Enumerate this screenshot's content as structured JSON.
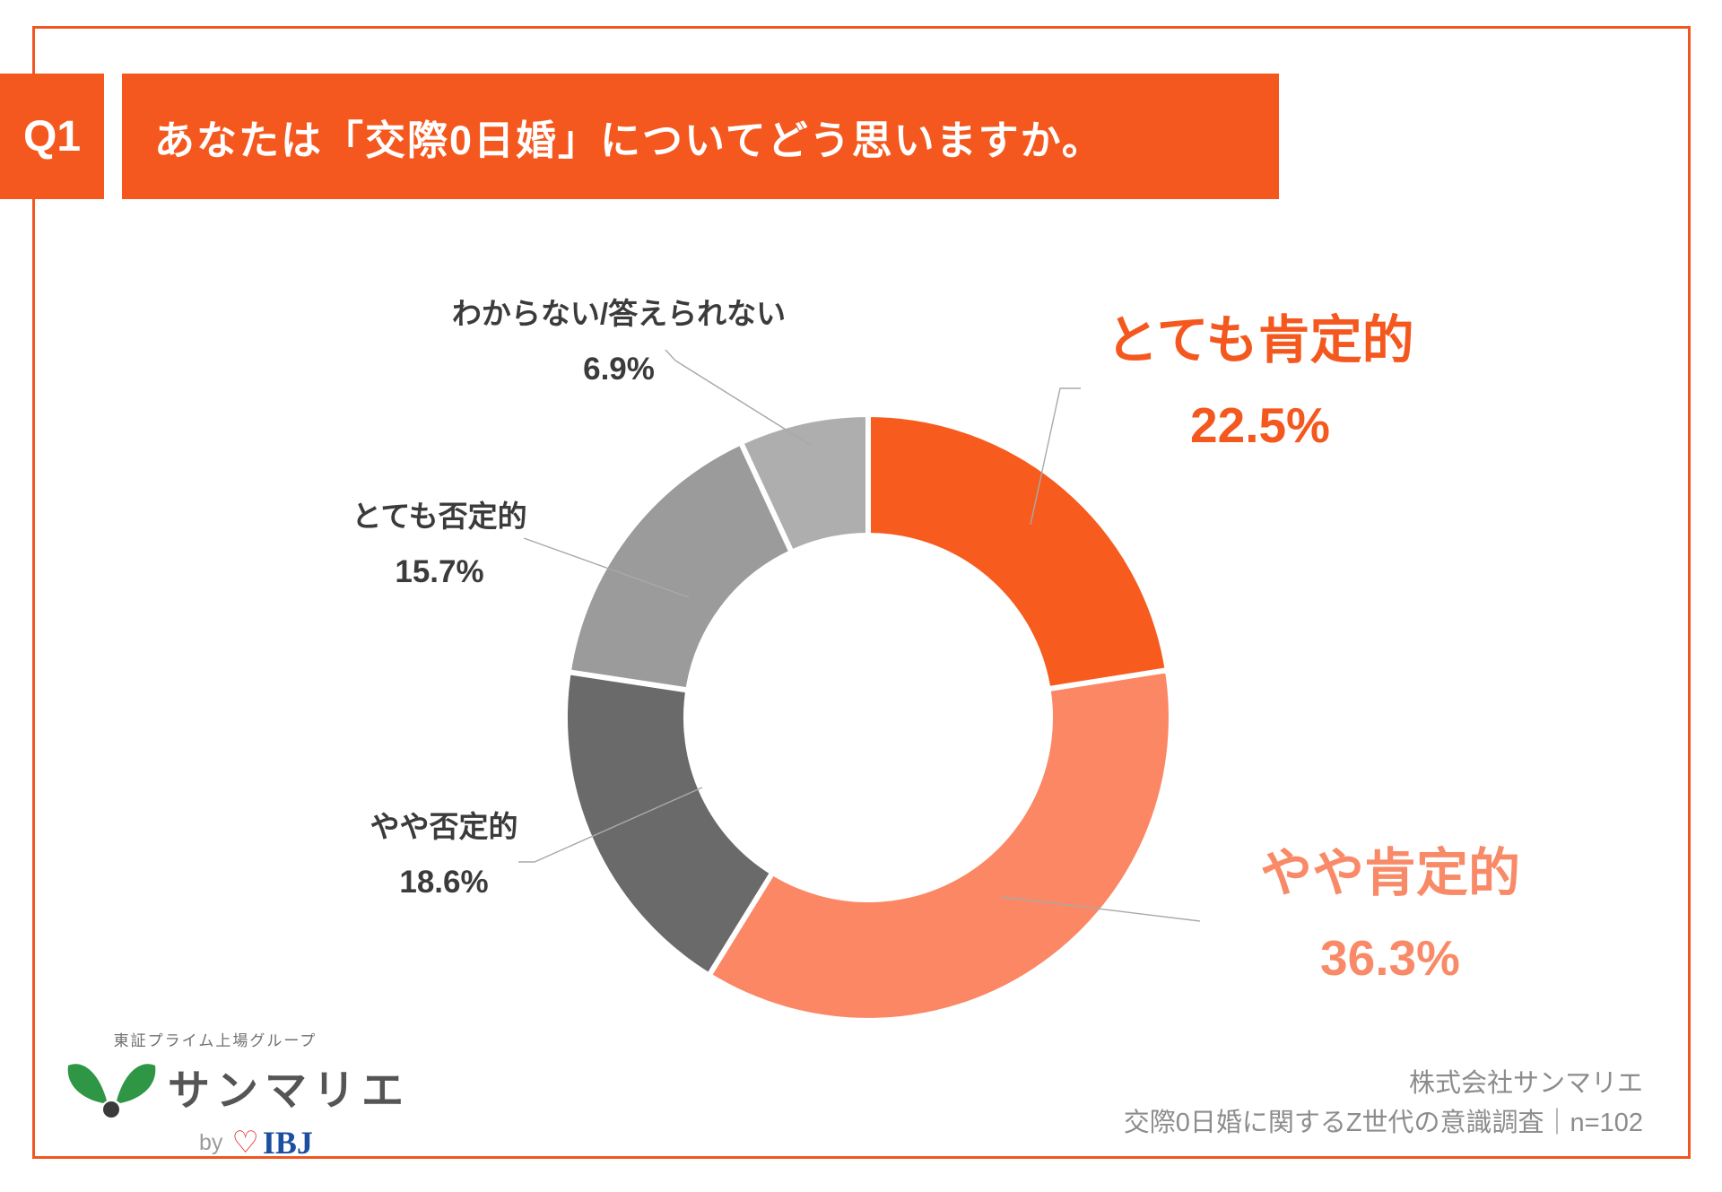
{
  "header": {
    "question_number": "Q1",
    "question_text": "あなたは「交際0日婚」についてどう思いますか。"
  },
  "chart_data": {
    "type": "pie",
    "subtype": "donut",
    "start_angle_deg": 0,
    "direction": "clockwise",
    "gap_color": "#ffffff",
    "segments": [
      {
        "label": "とても肯定的",
        "value": 22.5,
        "color": "#F75B1E"
      },
      {
        "label": "やや肯定的",
        "value": 36.3,
        "color": "#FB8765"
      },
      {
        "label": "やや否定的",
        "value": 18.6,
        "color": "#6A6A6A"
      },
      {
        "label": "とても否定的",
        "value": 15.7,
        "color": "#9B9B9B"
      },
      {
        "label": "わからない/答えられない",
        "value": 6.9,
        "color": "#AEAEAE"
      }
    ]
  },
  "callouts": {
    "positive_very": {
      "name": "とても肯定的",
      "pct": "22.5%"
    },
    "positive_some": {
      "name": "やや肯定的",
      "pct": "36.3%"
    },
    "negative_some": {
      "name": "やや否定的",
      "pct": "18.6%"
    },
    "negative_very": {
      "name": "とても否定的",
      "pct": "15.7%"
    },
    "unknown": {
      "name": "わからない/答えられない",
      "pct": "6.9%"
    }
  },
  "footer": {
    "logo": {
      "group_line": "東証プライム上場グループ",
      "brand": "サンマリエ",
      "by": "by",
      "ibj": "IBJ"
    },
    "source_line1": "株式会社サンマリエ",
    "source_line2": "交際0日婚に関するZ世代の意識調査｜n=102"
  },
  "colors": {
    "accent_orange": "#F4581E",
    "salmon": "#FB8765",
    "frame": "#F0561F",
    "leader_line": "#A9A9A9",
    "label_dark": "#3B3B3B",
    "source_gray": "#8C8C8C",
    "logo_green": "#2E9644",
    "ibj_blue": "#1C4F9F",
    "heart_red": "#E0353C"
  }
}
